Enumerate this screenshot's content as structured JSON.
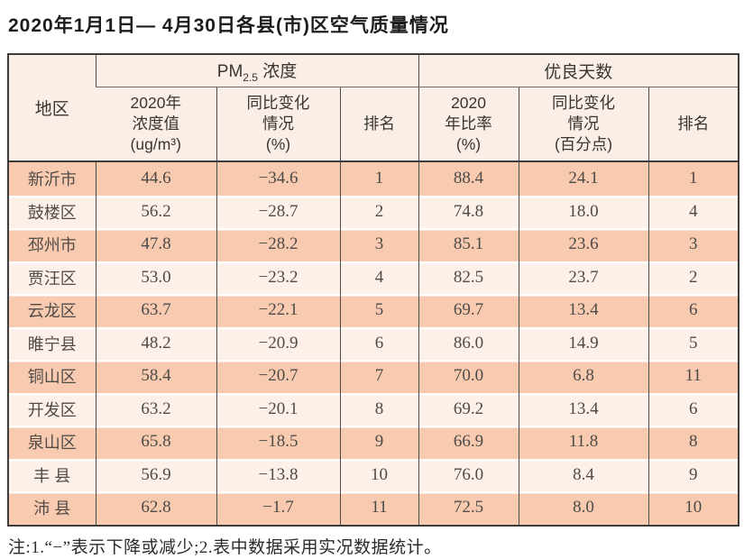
{
  "title": "2020年1月1日— 4月30日各县(市)区空气质量情况",
  "note": "注:1.“−”表示下降或减少;2.表中数据采用实况数据统计。",
  "colors": {
    "row_odd": "#f8cbb1",
    "row_even": "#fdf0e9",
    "header_bg": "#faeee6",
    "border_dark": "#3c3c3c",
    "text": "#4d4a47"
  },
  "table": {
    "region_header": "地区",
    "group1": {
      "pm_prefix": "PM",
      "pm_sub": "2.5",
      "pm_suffix": " 浓度"
    },
    "group2_label": "优良天数",
    "col_headers": {
      "conc": {
        "line1": "2020年",
        "line2": "浓度值",
        "line3": "(ug/m³)"
      },
      "conc_change": {
        "line1": "同比变化",
        "line2": "情况",
        "line3": "(%)"
      },
      "rank1": "排名",
      "ratio": {
        "line1": "2020",
        "line2": "年比率",
        "line3": "(%)"
      },
      "ratio_change": {
        "line1": "同比变化",
        "line2": "情况",
        "line3": "(百分点)"
      },
      "rank2": "排名"
    },
    "rows": [
      {
        "region": "新沂市",
        "conc": "44.6",
        "conc_change": "−34.6",
        "rank1": "1",
        "ratio": "88.4",
        "ratio_change": "24.1",
        "rank2": "1"
      },
      {
        "region": "鼓楼区",
        "conc": "56.2",
        "conc_change": "−28.7",
        "rank1": "2",
        "ratio": "74.8",
        "ratio_change": "18.0",
        "rank2": "4"
      },
      {
        "region": "邳州市",
        "conc": "47.8",
        "conc_change": "−28.2",
        "rank1": "3",
        "ratio": "85.1",
        "ratio_change": "23.6",
        "rank2": "3"
      },
      {
        "region": "贾汪区",
        "conc": "53.0",
        "conc_change": "−23.2",
        "rank1": "4",
        "ratio": "82.5",
        "ratio_change": "23.7",
        "rank2": "2"
      },
      {
        "region": "云龙区",
        "conc": "63.7",
        "conc_change": "−22.1",
        "rank1": "5",
        "ratio": "69.7",
        "ratio_change": "13.4",
        "rank2": "6"
      },
      {
        "region": "睢宁县",
        "conc": "48.2",
        "conc_change": "−20.9",
        "rank1": "6",
        "ratio": "86.0",
        "ratio_change": "14.9",
        "rank2": "5"
      },
      {
        "region": "铜山区",
        "conc": "58.4",
        "conc_change": "−20.7",
        "rank1": "7",
        "ratio": "70.0",
        "ratio_change": "6.8",
        "rank2": "11"
      },
      {
        "region": "开发区",
        "conc": "63.2",
        "conc_change": "−20.1",
        "rank1": "8",
        "ratio": "69.2",
        "ratio_change": "13.4",
        "rank2": "6"
      },
      {
        "region": "泉山区",
        "conc": "65.8",
        "conc_change": "−18.5",
        "rank1": "9",
        "ratio": "66.9",
        "ratio_change": "11.8",
        "rank2": "8"
      },
      {
        "region": "丰 县",
        "conc": "56.9",
        "conc_change": "−13.8",
        "rank1": "10",
        "ratio": "76.0",
        "ratio_change": "8.4",
        "rank2": "9"
      },
      {
        "region": "沛 县",
        "conc": "62.8",
        "conc_change": "−1.7",
        "rank1": "11",
        "ratio": "72.5",
        "ratio_change": "8.0",
        "rank2": "10"
      }
    ]
  }
}
